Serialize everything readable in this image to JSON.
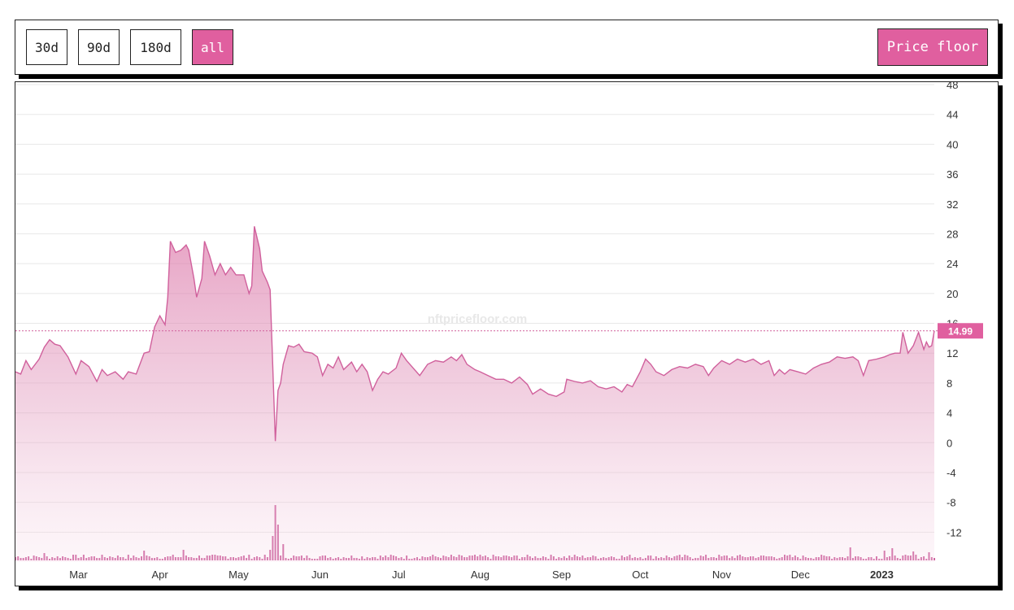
{
  "toolbar": {
    "ranges": [
      {
        "label": "30d",
        "active": false
      },
      {
        "label": "90d",
        "active": false
      },
      {
        "label": "180d",
        "active": false
      },
      {
        "label": "all",
        "active": true
      }
    ],
    "metric_button": "Price floor"
  },
  "watermark": "nftpricefloor.com",
  "colors": {
    "accent": "#e05f9f",
    "line": "#d0609c",
    "grid": "#e8e8e8",
    "volume": "#c2418a"
  },
  "chart_data": {
    "type": "area",
    "title": "",
    "xlabel": "",
    "ylabel": "",
    "ylim": [
      -16,
      48
    ],
    "yticks": [
      -12,
      -8,
      -4,
      0,
      4,
      8,
      12,
      16,
      20,
      24,
      28,
      32,
      36,
      40,
      44,
      48
    ],
    "x_range": [
      "2022-02-05",
      "2023-01-21"
    ],
    "x_tick_labels": [
      {
        "date": "2022-03-01",
        "label": "Mar",
        "bold": false
      },
      {
        "date": "2022-04-01",
        "label": "Apr",
        "bold": false
      },
      {
        "date": "2022-05-01",
        "label": "May",
        "bold": false
      },
      {
        "date": "2022-06-01",
        "label": "Jun",
        "bold": false
      },
      {
        "date": "2022-07-01",
        "label": "Jul",
        "bold": false
      },
      {
        "date": "2022-08-01",
        "label": "Aug",
        "bold": false
      },
      {
        "date": "2022-09-01",
        "label": "Sep",
        "bold": false
      },
      {
        "date": "2022-10-01",
        "label": "Oct",
        "bold": false
      },
      {
        "date": "2022-11-01",
        "label": "Nov",
        "bold": false
      },
      {
        "date": "2022-12-01",
        "label": "Dec",
        "bold": false
      },
      {
        "date": "2023-01-01",
        "label": "2023",
        "bold": true
      }
    ],
    "current_value": 14.99,
    "current_value_label": "14.99",
    "series": [
      {
        "points": [
          [
            "2022-02-05",
            9.5
          ],
          [
            "2022-02-07",
            9.2
          ],
          [
            "2022-02-09",
            11.0
          ],
          [
            "2022-02-11",
            9.8
          ],
          [
            "2022-02-14",
            11.2
          ],
          [
            "2022-02-16",
            12.8
          ],
          [
            "2022-02-18",
            13.8
          ],
          [
            "2022-02-20",
            13.2
          ],
          [
            "2022-02-22",
            13.0
          ],
          [
            "2022-02-25",
            11.5
          ],
          [
            "2022-02-28",
            9.2
          ],
          [
            "2022-03-02",
            11.0
          ],
          [
            "2022-03-05",
            10.2
          ],
          [
            "2022-03-08",
            8.2
          ],
          [
            "2022-03-10",
            9.8
          ],
          [
            "2022-03-12",
            9.0
          ],
          [
            "2022-03-15",
            9.5
          ],
          [
            "2022-03-18",
            8.5
          ],
          [
            "2022-03-20",
            9.5
          ],
          [
            "2022-03-23",
            9.2
          ],
          [
            "2022-03-26",
            12.0
          ],
          [
            "2022-03-28",
            12.2
          ],
          [
            "2022-03-30",
            15.5
          ],
          [
            "2022-04-01",
            17.0
          ],
          [
            "2022-04-03",
            15.8
          ],
          [
            "2022-04-04",
            19.5
          ],
          [
            "2022-04-05",
            27.0
          ],
          [
            "2022-04-07",
            25.5
          ],
          [
            "2022-04-09",
            25.8
          ],
          [
            "2022-04-11",
            26.5
          ],
          [
            "2022-04-12",
            25.8
          ],
          [
            "2022-04-14",
            22.0
          ],
          [
            "2022-04-15",
            19.5
          ],
          [
            "2022-04-17",
            22.0
          ],
          [
            "2022-04-18",
            27.0
          ],
          [
            "2022-04-20",
            25.0
          ],
          [
            "2022-04-22",
            22.5
          ],
          [
            "2022-04-24",
            24.0
          ],
          [
            "2022-04-26",
            22.5
          ],
          [
            "2022-04-28",
            23.5
          ],
          [
            "2022-04-30",
            22.5
          ],
          [
            "2022-05-03",
            22.5
          ],
          [
            "2022-05-05",
            20.0
          ],
          [
            "2022-05-06",
            21.0
          ],
          [
            "2022-05-07",
            29.0
          ],
          [
            "2022-05-09",
            26.0
          ],
          [
            "2022-05-10",
            23.0
          ],
          [
            "2022-05-12",
            21.5
          ],
          [
            "2022-05-13",
            20.5
          ],
          [
            "2022-05-15",
            0.2
          ],
          [
            "2022-05-16",
            7.0
          ],
          [
            "2022-05-17",
            8.0
          ],
          [
            "2022-05-18",
            10.5
          ],
          [
            "2022-05-20",
            13.0
          ],
          [
            "2022-05-22",
            12.8
          ],
          [
            "2022-05-24",
            13.2
          ],
          [
            "2022-05-26",
            12.2
          ],
          [
            "2022-05-29",
            12.0
          ],
          [
            "2022-05-31",
            11.5
          ],
          [
            "2022-06-02",
            9.0
          ],
          [
            "2022-06-04",
            10.5
          ],
          [
            "2022-06-06",
            10.0
          ],
          [
            "2022-06-08",
            11.5
          ],
          [
            "2022-06-10",
            9.8
          ],
          [
            "2022-06-13",
            10.8
          ],
          [
            "2022-06-15",
            9.5
          ],
          [
            "2022-06-17",
            10.5
          ],
          [
            "2022-06-19",
            9.5
          ],
          [
            "2022-06-21",
            7.0
          ],
          [
            "2022-06-23",
            8.5
          ],
          [
            "2022-06-25",
            9.5
          ],
          [
            "2022-06-27",
            9.2
          ],
          [
            "2022-06-30",
            10.0
          ],
          [
            "2022-07-02",
            12.0
          ],
          [
            "2022-07-04",
            11.0
          ],
          [
            "2022-07-06",
            10.2
          ],
          [
            "2022-07-09",
            9.0
          ],
          [
            "2022-07-12",
            10.5
          ],
          [
            "2022-07-15",
            11.0
          ],
          [
            "2022-07-18",
            10.8
          ],
          [
            "2022-07-21",
            11.5
          ],
          [
            "2022-07-23",
            11.0
          ],
          [
            "2022-07-25",
            11.8
          ],
          [
            "2022-07-27",
            10.5
          ],
          [
            "2022-07-30",
            9.8
          ],
          [
            "2022-08-01",
            9.5
          ],
          [
            "2022-08-04",
            9.0
          ],
          [
            "2022-08-07",
            8.5
          ],
          [
            "2022-08-10",
            8.5
          ],
          [
            "2022-08-13",
            8.0
          ],
          [
            "2022-08-16",
            8.8
          ],
          [
            "2022-08-19",
            7.8
          ],
          [
            "2022-08-21",
            6.5
          ],
          [
            "2022-08-24",
            7.2
          ],
          [
            "2022-08-27",
            6.5
          ],
          [
            "2022-08-30",
            6.2
          ],
          [
            "2022-09-02",
            6.8
          ],
          [
            "2022-09-03",
            8.5
          ],
          [
            "2022-09-06",
            8.2
          ],
          [
            "2022-09-09",
            8.0
          ],
          [
            "2022-09-12",
            8.3
          ],
          [
            "2022-09-15",
            7.5
          ],
          [
            "2022-09-18",
            7.2
          ],
          [
            "2022-09-21",
            7.5
          ],
          [
            "2022-09-24",
            6.8
          ],
          [
            "2022-09-26",
            7.8
          ],
          [
            "2022-09-28",
            7.5
          ],
          [
            "2022-10-01",
            9.5
          ],
          [
            "2022-10-03",
            11.2
          ],
          [
            "2022-10-05",
            10.5
          ],
          [
            "2022-10-07",
            9.5
          ],
          [
            "2022-10-10",
            9.0
          ],
          [
            "2022-10-13",
            9.8
          ],
          [
            "2022-10-16",
            10.2
          ],
          [
            "2022-10-19",
            10.0
          ],
          [
            "2022-10-22",
            10.5
          ],
          [
            "2022-10-25",
            10.2
          ],
          [
            "2022-10-27",
            9.0
          ],
          [
            "2022-10-29",
            10.0
          ],
          [
            "2022-11-01",
            11.0
          ],
          [
            "2022-11-04",
            10.5
          ],
          [
            "2022-11-07",
            11.2
          ],
          [
            "2022-11-10",
            10.8
          ],
          [
            "2022-11-13",
            11.2
          ],
          [
            "2022-11-16",
            10.5
          ],
          [
            "2022-11-19",
            11.0
          ],
          [
            "2022-11-21",
            9.0
          ],
          [
            "2022-11-23",
            9.8
          ],
          [
            "2022-11-25",
            9.2
          ],
          [
            "2022-11-27",
            9.8
          ],
          [
            "2022-11-30",
            9.5
          ],
          [
            "2022-12-03",
            9.2
          ],
          [
            "2022-12-06",
            10.0
          ],
          [
            "2022-12-09",
            10.5
          ],
          [
            "2022-12-12",
            10.8
          ],
          [
            "2022-12-15",
            11.5
          ],
          [
            "2022-12-18",
            11.3
          ],
          [
            "2022-12-21",
            11.5
          ],
          [
            "2022-12-23",
            11.0
          ],
          [
            "2022-12-25",
            9.0
          ],
          [
            "2022-12-27",
            11.0
          ],
          [
            "2022-12-30",
            11.2
          ],
          [
            "2023-01-02",
            11.5
          ],
          [
            "2023-01-04",
            11.8
          ],
          [
            "2023-01-06",
            12.0
          ],
          [
            "2023-01-08",
            12.0
          ],
          [
            "2023-01-09",
            14.8
          ],
          [
            "2023-01-11",
            12.0
          ],
          [
            "2023-01-13",
            13.0
          ],
          [
            "2023-01-15",
            14.8
          ],
          [
            "2023-01-17",
            12.5
          ],
          [
            "2023-01-18",
            13.5
          ],
          [
            "2023-01-19",
            12.8
          ],
          [
            "2023-01-20",
            13.0
          ],
          [
            "2023-01-21",
            14.99
          ]
        ]
      }
    ],
    "volume_bars": {
      "type": "bar",
      "values": [
        [
          "2022-05-13",
          13
        ],
        [
          "2022-05-14",
          30
        ],
        [
          "2022-05-15",
          68
        ],
        [
          "2022-05-16",
          44
        ],
        [
          "2022-05-18",
          20
        ],
        [
          "2022-04-10",
          13
        ],
        [
          "2022-03-26",
          12
        ],
        [
          "2022-02-16",
          9
        ],
        [
          "2022-12-20",
          16
        ],
        [
          "2023-01-02",
          12
        ],
        [
          "2023-01-05",
          15
        ],
        [
          "2023-01-13",
          11
        ],
        [
          "2023-01-19",
          10
        ]
      ]
    }
  }
}
